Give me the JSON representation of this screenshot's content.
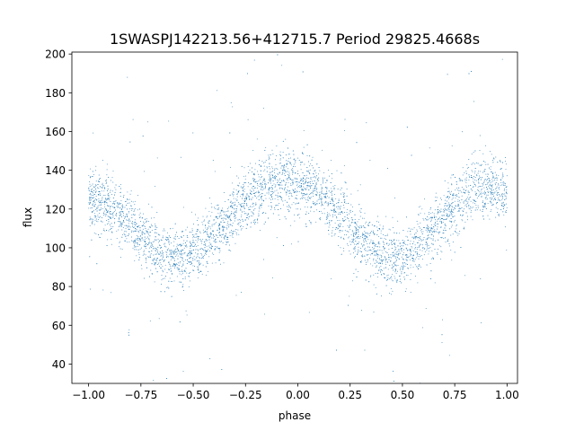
{
  "chart_data": {
    "type": "scatter",
    "title": "1SWASPJ142213.56+412715.7 Period 29825.4668s",
    "xlabel": "phase",
    "ylabel": "flux",
    "xlim": [
      -1.08,
      1.05
    ],
    "ylim": [
      30,
      201
    ],
    "xticks": [
      -1.0,
      -0.75,
      -0.5,
      -0.25,
      0.0,
      0.25,
      0.5,
      0.75,
      1.0
    ],
    "xtick_labels": [
      "−1.00",
      "−0.75",
      "−0.50",
      "−0.25",
      "0.00",
      "0.25",
      "0.50",
      "0.75",
      "1.00"
    ],
    "yticks": [
      40,
      60,
      80,
      100,
      120,
      140,
      160,
      180,
      200
    ],
    "ytick_labels": [
      "40",
      "60",
      "80",
      "100",
      "120",
      "140",
      "160",
      "180",
      "200"
    ],
    "grid": false,
    "legend": "none",
    "point_color": "#1f77b4",
    "series": [
      {
        "x": [
          -1.0,
          -0.95,
          -0.9,
          -0.85,
          -0.8,
          -0.75,
          -0.7,
          -0.65,
          -0.6,
          -0.55,
          -0.5,
          -0.45,
          -0.4,
          -0.35,
          -0.3,
          -0.25,
          -0.2,
          -0.15,
          -0.1,
          -0.05,
          0.0,
          0.05,
          0.1,
          0.15,
          0.2,
          0.25,
          0.3,
          0.35,
          0.4,
          0.45,
          0.5,
          0.55,
          0.6,
          0.65,
          0.7,
          0.75,
          0.8,
          0.85,
          0.9,
          0.95,
          1.0
        ],
        "y": [
          125,
          124,
          121,
          117,
          112,
          107,
          102,
          98,
          96,
          95,
          97,
          101,
          106,
          112,
          118,
          124,
          129,
          132,
          134,
          134,
          133,
          131,
          127,
          122,
          117,
          111,
          105,
          100,
          96,
          95,
          96,
          99,
          104,
          110,
          116,
          122,
          127,
          130,
          131,
          130,
          127
        ]
      }
    ]
  }
}
